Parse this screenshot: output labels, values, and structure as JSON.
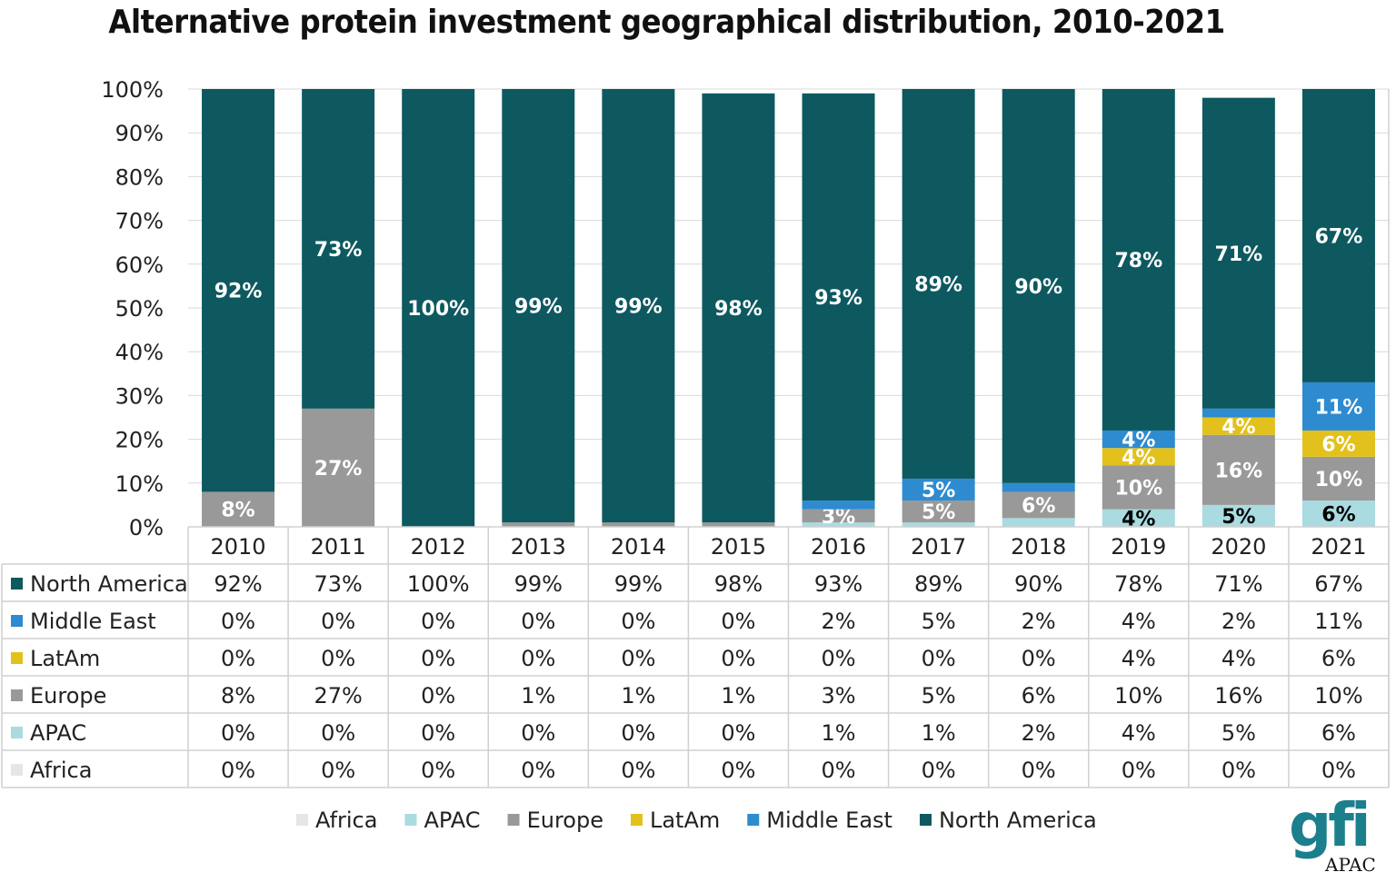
{
  "chart_data": {
    "type": "bar",
    "stacked": true,
    "title": "Alternative protein investment geographical distribution, 2010-2021",
    "categories": [
      "2010",
      "2011",
      "2012",
      "2013",
      "2014",
      "2015",
      "2016",
      "2017",
      "2018",
      "2019",
      "2020",
      "2021"
    ],
    "ylim": [
      0,
      100
    ],
    "yticks": [
      "0%",
      "10%",
      "20%",
      "30%",
      "40%",
      "50%",
      "60%",
      "70%",
      "80%",
      "90%",
      "100%"
    ],
    "grid": true,
    "legend": "bottom",
    "data_table": true,
    "series": [
      {
        "name": "Africa",
        "color": "#e6e6e6",
        "values": [
          0,
          0,
          0,
          0,
          0,
          0,
          0,
          0,
          0,
          0,
          0,
          0
        ]
      },
      {
        "name": "APAC",
        "color": "#a9dbe0",
        "label_color": "#000000",
        "values": [
          0,
          0,
          0,
          0,
          0,
          0,
          1,
          1,
          2,
          4,
          5,
          6
        ]
      },
      {
        "name": "Europe",
        "color": "#999999",
        "values": [
          8,
          27,
          0,
          1,
          1,
          1,
          3,
          5,
          6,
          10,
          16,
          10
        ]
      },
      {
        "name": "LatAm",
        "color": "#e2c11c",
        "values": [
          0,
          0,
          0,
          0,
          0,
          0,
          0,
          0,
          0,
          4,
          4,
          6
        ]
      },
      {
        "name": "Middle East",
        "color": "#2e8bd0",
        "values": [
          0,
          0,
          0,
          0,
          0,
          0,
          2,
          5,
          2,
          4,
          2,
          11
        ]
      },
      {
        "name": "North America",
        "color": "#0e5960",
        "values": [
          92,
          73,
          100,
          99,
          99,
          98,
          93,
          89,
          90,
          78,
          71,
          67
        ]
      }
    ],
    "table_row_order": [
      "North America",
      "Middle East",
      "LatAm",
      "Europe",
      "APAC",
      "Africa"
    ]
  },
  "logo": {
    "text": "gfi",
    "sub": "APAC"
  }
}
